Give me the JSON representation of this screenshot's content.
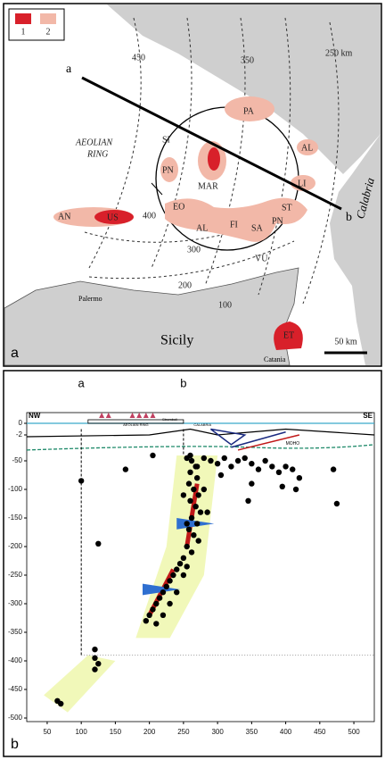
{
  "map": {
    "panel_label": "a",
    "legend": [
      "1",
      "2"
    ],
    "contours": [
      "450",
      "350",
      "250 km",
      "400",
      "300",
      "200",
      "100"
    ],
    "profile": [
      "a",
      "b"
    ],
    "ring_label": [
      "AEOLIAN",
      "RING"
    ],
    "places": [
      "SI",
      "PA",
      "AL",
      "LI",
      "PN",
      "MAR",
      "EO",
      "AN",
      "US",
      "AL",
      "FI",
      "SA",
      "ST",
      "PN",
      "VU",
      "Palermo",
      "Sicily",
      "ET",
      "Catania",
      "Calabria"
    ],
    "scale": "50 km"
  },
  "chart_data": {
    "type": "scatter",
    "panel_label": "b",
    "annotations": [
      "a",
      "b",
      "NW",
      "SE",
      "AEOLIAN RING",
      "Stromboli",
      "CALABRIA",
      "MOHO"
    ],
    "x": [
      100,
      125,
      165,
      205,
      120,
      120,
      125,
      120,
      65,
      70,
      255,
      262,
      268,
      260,
      270,
      258,
      265,
      272,
      260,
      268,
      275,
      262,
      270,
      258,
      265,
      272,
      255,
      262,
      250,
      245,
      240,
      235,
      230,
      225,
      220,
      215,
      210,
      205,
      200,
      195,
      210,
      220,
      230,
      240,
      250,
      255,
      270,
      280,
      290,
      300,
      310,
      320,
      330,
      340,
      350,
      360,
      370,
      380,
      390,
      400,
      410,
      420,
      415,
      470,
      475,
      305,
      345,
      350,
      395,
      260,
      280,
      285,
      250,
      255
    ],
    "y": [
      -85,
      -195,
      -65,
      -40,
      -380,
      -395,
      -405,
      -415,
      -470,
      -475,
      -45,
      -50,
      -60,
      -70,
      -80,
      -90,
      -100,
      -110,
      -120,
      -130,
      -140,
      -150,
      -160,
      -170,
      -180,
      -190,
      -200,
      -210,
      -220,
      -230,
      -240,
      -250,
      -260,
      -270,
      -280,
      -290,
      -300,
      -310,
      -320,
      -330,
      -335,
      -320,
      -300,
      -280,
      -250,
      -235,
      -60,
      -45,
      -50,
      -55,
      -45,
      -60,
      -50,
      -45,
      -55,
      -65,
      -50,
      -60,
      -70,
      -60,
      -65,
      -80,
      -100,
      -65,
      -125,
      -75,
      -120,
      -90,
      -95,
      -40,
      -100,
      -140,
      -110,
      -160
    ],
    "color": "#000000",
    "xlim": [
      20,
      530
    ],
    "ylim": [
      -500,
      0
    ],
    "xticks": [
      50,
      100,
      150,
      200,
      250,
      300,
      350,
      400,
      450,
      500
    ],
    "yticks": [
      0,
      -2,
      -50,
      -100,
      -150,
      -200,
      -250,
      -300,
      -350,
      -400,
      -450,
      -500
    ]
  }
}
